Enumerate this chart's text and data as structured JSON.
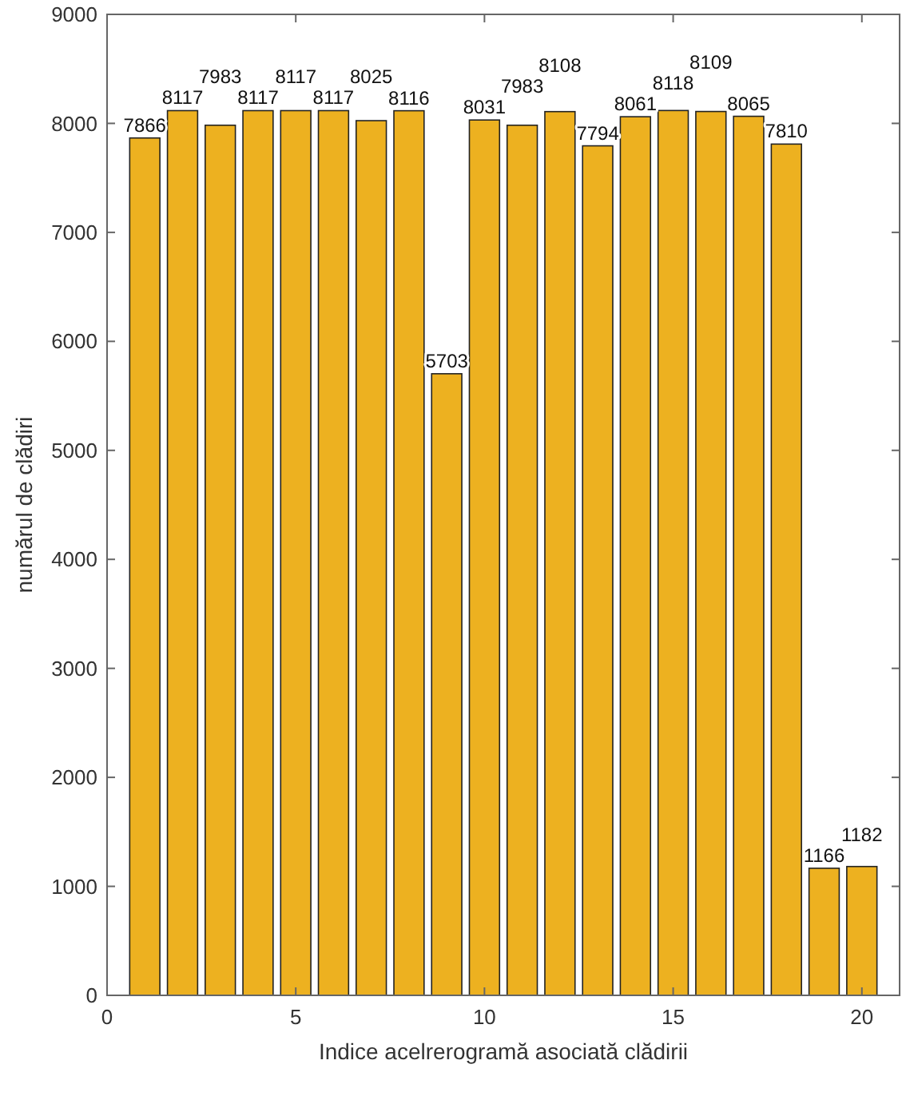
{
  "chart_data": {
    "type": "bar",
    "xlabel": "Indice acelrerogramă asociată clădirii",
    "ylabel": "numărul de clădiri",
    "x": [
      1,
      2,
      3,
      4,
      5,
      6,
      7,
      8,
      9,
      10,
      11,
      12,
      13,
      14,
      15,
      16,
      17,
      18,
      19,
      20
    ],
    "values": [
      7866,
      8117,
      7983,
      8117,
      8117,
      8117,
      8025,
      8116,
      5703,
      8031,
      7983,
      8108,
      7794,
      8061,
      8118,
      8109,
      8065,
      7810,
      1166,
      1182
    ],
    "color": "#edb120",
    "xlim": [
      0,
      21
    ],
    "xticks": [
      0,
      5,
      10,
      15,
      20
    ],
    "ylim": [
      0,
      9000
    ],
    "yticks": [
      0,
      1000,
      2000,
      3000,
      4000,
      5000,
      6000,
      7000,
      8000,
      9000
    ],
    "grid": false,
    "data_labels": true
  }
}
